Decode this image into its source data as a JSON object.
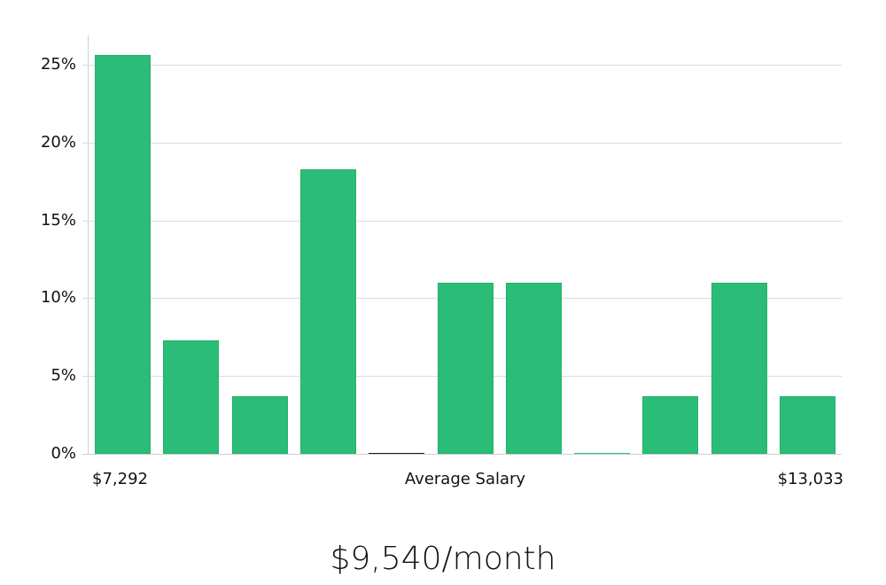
{
  "chart_data": {
    "type": "bar",
    "title": "",
    "xlabel": "Average Salary",
    "ylabel": "",
    "x_range_labels": {
      "min": "$7,292",
      "max": "$13,033"
    },
    "categories": [
      "bin1",
      "bin2",
      "bin3",
      "bin4",
      "bin5",
      "bin6",
      "bin7",
      "bin8",
      "bin9",
      "bin10",
      "bin11"
    ],
    "values": [
      25.6,
      7.3,
      3.7,
      18.3,
      0,
      11.0,
      11.0,
      0,
      3.7,
      11.0,
      3.7
    ],
    "yticks": [
      "0%",
      "5%",
      "10%",
      "15%",
      "20%",
      "25%"
    ],
    "ylim": [
      0,
      27
    ],
    "grid": true,
    "bar_color": "#2bbd78",
    "zero_bar_colors": {
      "bin5": "#1a1a2e",
      "bin8": "#2bbd78"
    }
  },
  "summary": {
    "text": "$9,540/month"
  }
}
